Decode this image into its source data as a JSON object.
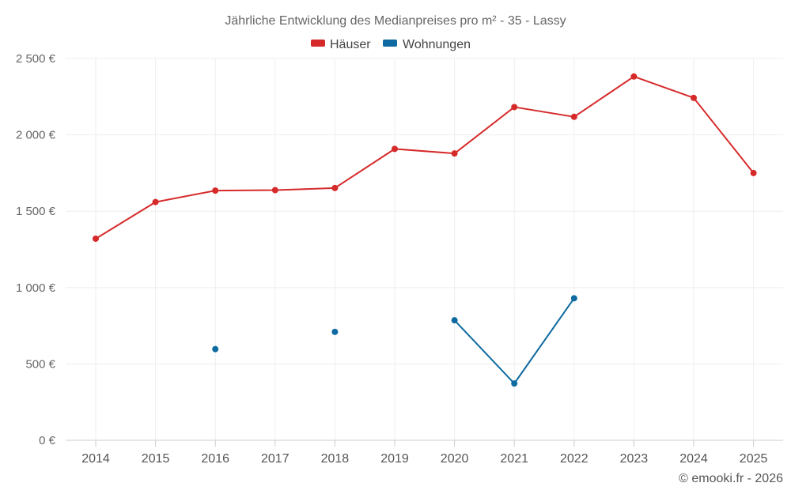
{
  "chart_data": {
    "type": "line",
    "title": "Jährliche Entwicklung des Medianpreises pro m² - 35 - Lassy",
    "categories": [
      "2014",
      "2015",
      "2016",
      "2017",
      "2018",
      "2019",
      "2020",
      "2021",
      "2022",
      "2023",
      "2024",
      "2025"
    ],
    "series": [
      {
        "name": "Häuser",
        "color": "#d62a2a",
        "values": [
          1320,
          1560,
          1635,
          1638,
          1652,
          1908,
          1878,
          2182,
          2118,
          2382,
          2242,
          1750
        ]
      },
      {
        "name": "Wohnungen",
        "color": "#0e6aa0",
        "values": [
          null,
          null,
          597,
          null,
          710,
          null,
          786,
          372,
          930,
          null,
          null,
          null
        ]
      }
    ],
    "ylim": [
      0,
      2500
    ],
    "yticks": [
      0,
      500,
      1000,
      1500,
      2000,
      2500
    ],
    "ytick_labels": [
      "0 €",
      "500 €",
      "1 000 €",
      "1 500 €",
      "2 000 €",
      "2 500 €"
    ],
    "xlabel": "",
    "ylabel": "",
    "grid": true,
    "legend_position": "top-center",
    "credit": "© emooki.fr - 2026"
  }
}
